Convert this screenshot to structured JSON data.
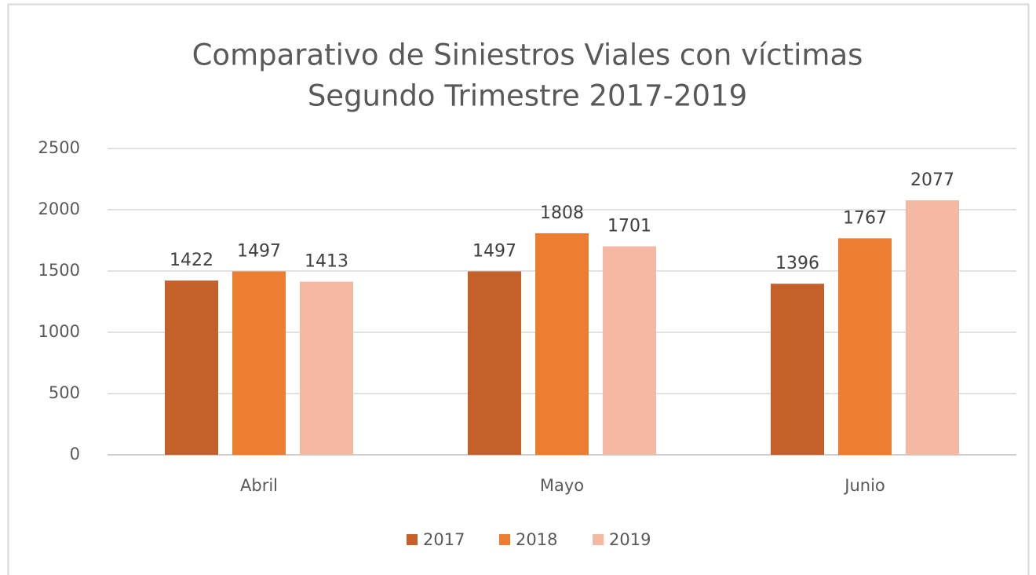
{
  "chart_data": {
    "type": "bar",
    "title": [
      "Comparativo de Siniestros Viales con víctimas",
      "Segundo Trimestre 2017-2019"
    ],
    "categories": [
      "Abril",
      "Mayo",
      "Junio"
    ],
    "series": [
      {
        "name": "2017",
        "color": "#c4602a",
        "values": [
          1422,
          1497,
          1396
        ]
      },
      {
        "name": "2018",
        "color": "#ed7d31",
        "values": [
          1497,
          1808,
          1767
        ]
      },
      {
        "name": "2019",
        "color": "#f4b8a3",
        "values": [
          1413,
          1701,
          2077
        ]
      }
    ],
    "ylim": [
      0,
      2500
    ],
    "yticks": [
      0,
      500,
      1000,
      1500,
      2000,
      2500
    ],
    "grid": true,
    "legend": "bottom"
  }
}
